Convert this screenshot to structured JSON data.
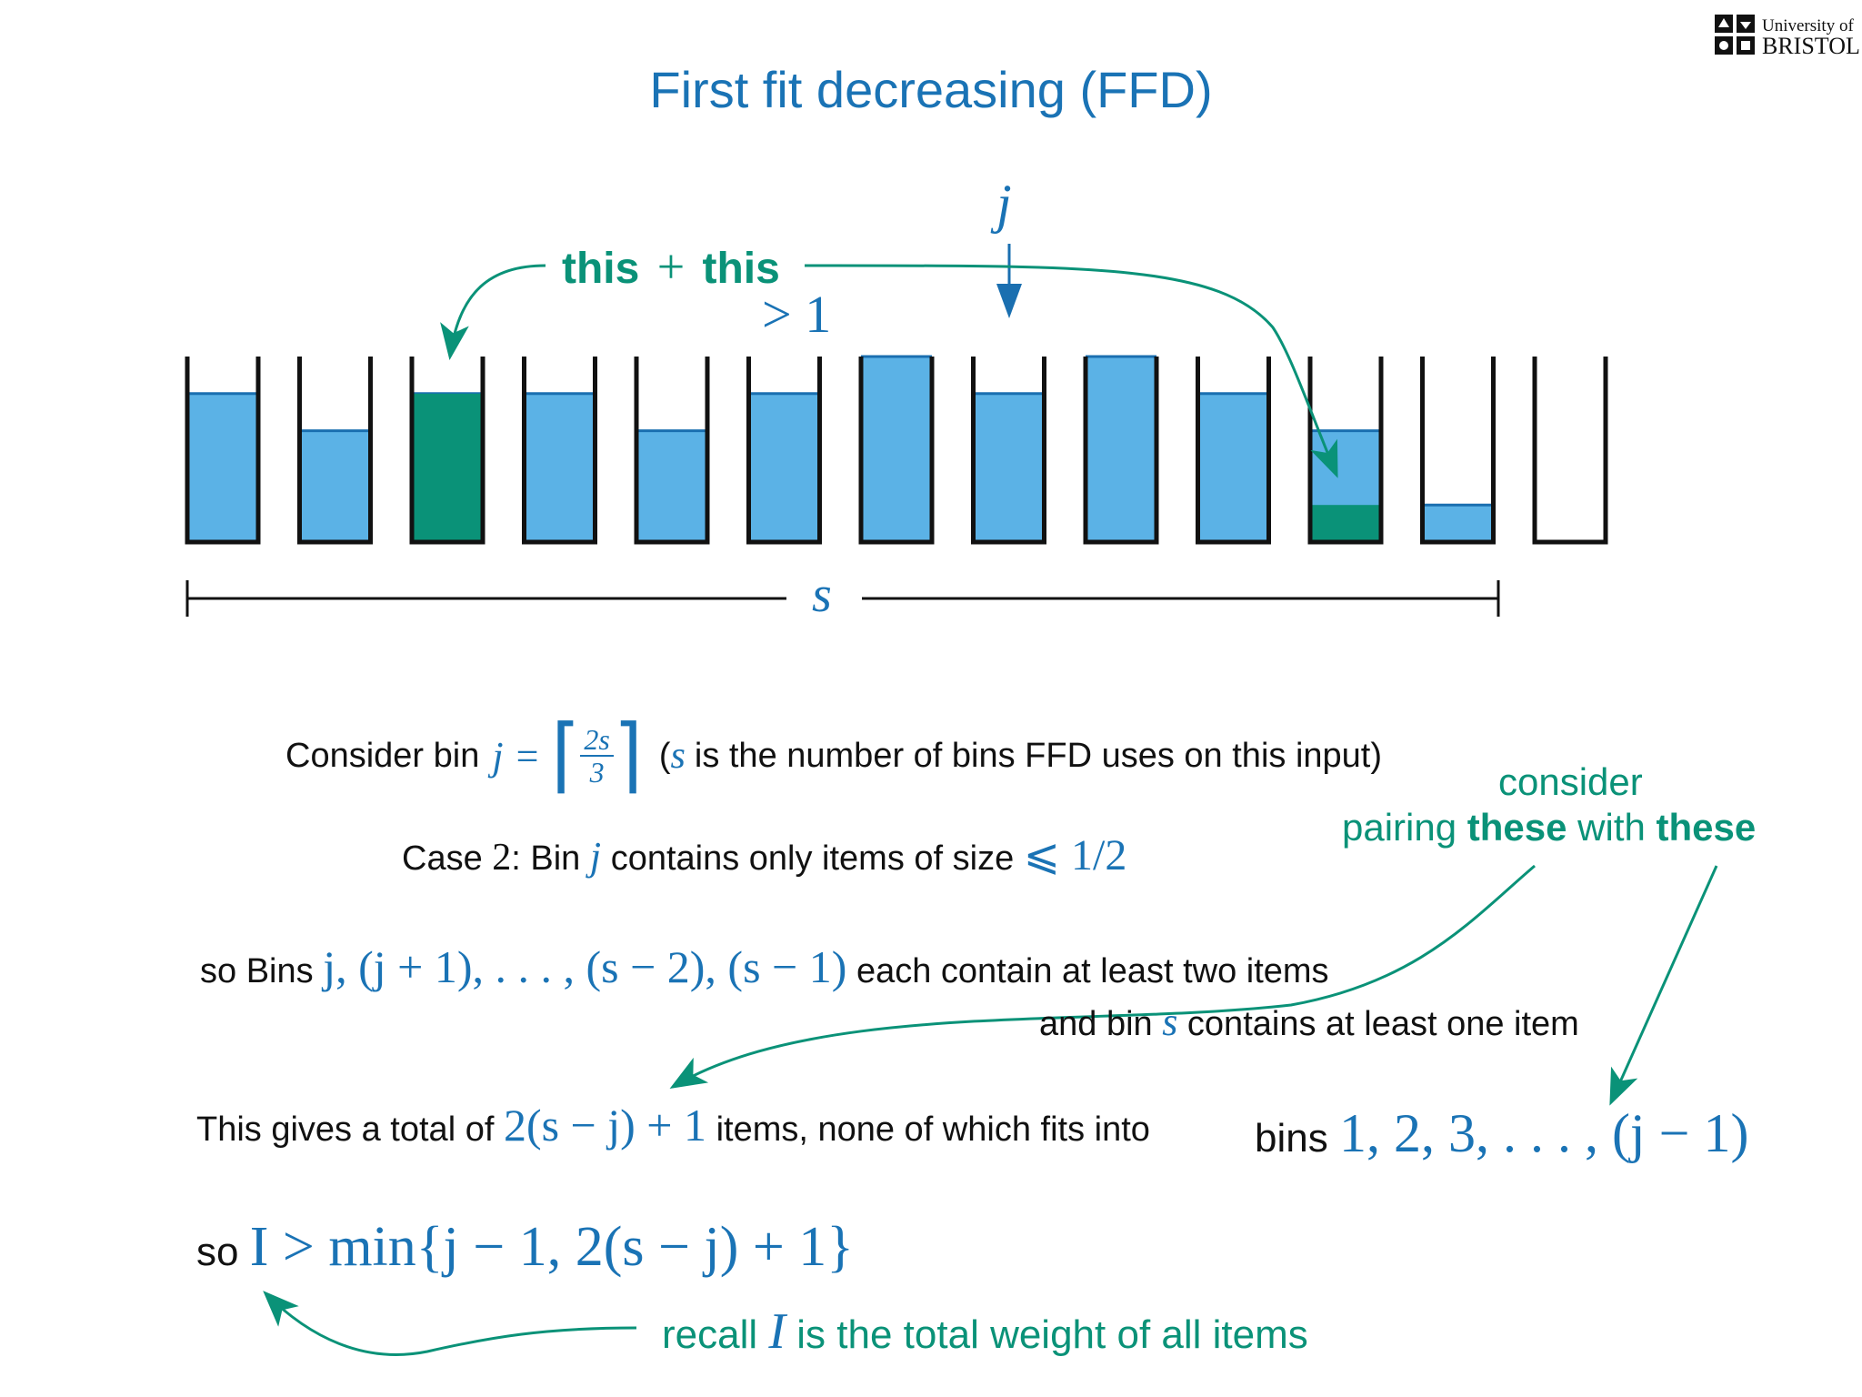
{
  "logo": {
    "line1": "University of",
    "line2": "BRISTOL"
  },
  "title": "First fit decreasing (FFD)",
  "labels": {
    "j_top": "j",
    "this1": "this",
    "plus": "+",
    "this2": "this",
    "gt": ">",
    "one": "1",
    "s_axis": "s"
  },
  "colors": {
    "blue_fill": "#5bb2e6",
    "blue_edge": "#1a6fb0",
    "green_fill": "#0a9278",
    "accent_math": "#1a73b5",
    "annot": "#0a9278"
  },
  "bins": [
    {
      "fill": 0.8,
      "green": 0
    },
    {
      "fill": 0.6,
      "green": 0
    },
    {
      "fill": 0.8,
      "green": 0.8
    },
    {
      "fill": 0.8,
      "green": 0
    },
    {
      "fill": 0.6,
      "green": 0
    },
    {
      "fill": 0.8,
      "green": 0
    },
    {
      "fill": 1.0,
      "green": 0
    },
    {
      "fill": 0.8,
      "green": 0
    },
    {
      "fill": 1.0,
      "green": 0
    },
    {
      "fill": 0.8,
      "green": 0
    },
    {
      "fill": 0.6,
      "green": 0.2
    },
    {
      "fill": 0.2,
      "green": 0
    },
    {
      "fill": 0.0,
      "green": 0
    }
  ],
  "line1": {
    "prefix": "Consider bin",
    "j": "j",
    "eq": "=",
    "num": "2s",
    "den": "3",
    "open": "(",
    "s": "s",
    "suffix": "is the number of bins FFD uses on this input)"
  },
  "consider": {
    "line1": "consider",
    "pre": "pairing",
    "b1": "these",
    "mid": "with",
    "b2": "these"
  },
  "case2": {
    "pre": "Case",
    "num": "2",
    "mid": ": Bin",
    "j": "j",
    "suffix": "contains only items of size",
    "math": "⩽ 1/2"
  },
  "so_bins": {
    "pre": "so Bins",
    "math": "j, (j + 1), . . . , (s − 2), (s − 1)",
    "suffix": "each contain at least two items"
  },
  "bin_s": {
    "pre": "and bin",
    "s": "s",
    "suffix": "contains at least one item"
  },
  "total": {
    "pre": "This gives a total of",
    "math": "2(s − j) + 1",
    "suffix": "items, none of which fits into",
    "bins_word": "bins",
    "bins_math": "1, 2, 3, . . . , (j − 1)"
  },
  "so_I": {
    "pre": "so",
    "math": "I > min{j − 1, 2(s − j) + 1}"
  },
  "recall": {
    "pre": "recall",
    "I": "I",
    "suffix": "is the total weight of all items"
  }
}
